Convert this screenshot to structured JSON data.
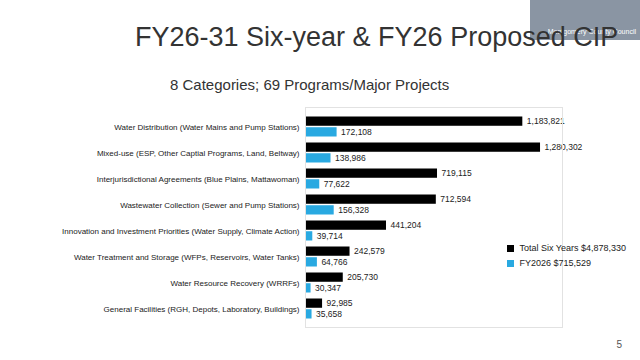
{
  "chart_data": {
    "type": "bar",
    "orientation": "horizontal",
    "title": "FY26-31 Six-year & FY26 Proposed CIP",
    "subtitle": "8 Categories;  69 Programs/Major Projects",
    "annotations": [
      "Montgomery County Council",
      "5"
    ],
    "categories": [
      "Water Distribution (Water Mains and Pump Stations)",
      "Mixed-use (ESP, Other Captial Programs, Land, Beltway)",
      "Interjurisdictional Agreements (Blue Plains, Mattawoman)",
      "Wastewater Collection (Sewer and Pump Stations)",
      "Innovation and Investment Priorities (Water Supply, Climate Action)",
      "Water Treatment and Storage (WFPs, Reservoirs, Water Tanks)",
      "Water Resource Recovery (WRRFs)",
      "General Facilities (RGH, Depots, Laboratory, Buildings)"
    ],
    "series": [
      {
        "name": "Total Six Years $4,878,330",
        "color": "#000000",
        "values": [
          1183821,
          1280302,
          719115,
          712594,
          441204,
          242579,
          205730,
          92985
        ],
        "value_labels": [
          "1,183,821",
          "1,280,302",
          "719,115",
          "712,594",
          "441,204",
          "242,579",
          "205,730",
          "92,985"
        ]
      },
      {
        "name": "FY2026 $715,529",
        "color": "#29a9e1",
        "values": [
          172108,
          138986,
          77622,
          156328,
          39714,
          64766,
          30347,
          35658
        ],
        "value_labels": [
          "172,108",
          "138,986",
          "77,622",
          "156,328",
          "39,714",
          "64,766",
          "30,347",
          "35,658"
        ]
      }
    ],
    "xlim": [
      0,
      1400000
    ],
    "data_labels": true,
    "tick_labels": "y",
    "legend": "bottom-right",
    "grid": false
  }
}
